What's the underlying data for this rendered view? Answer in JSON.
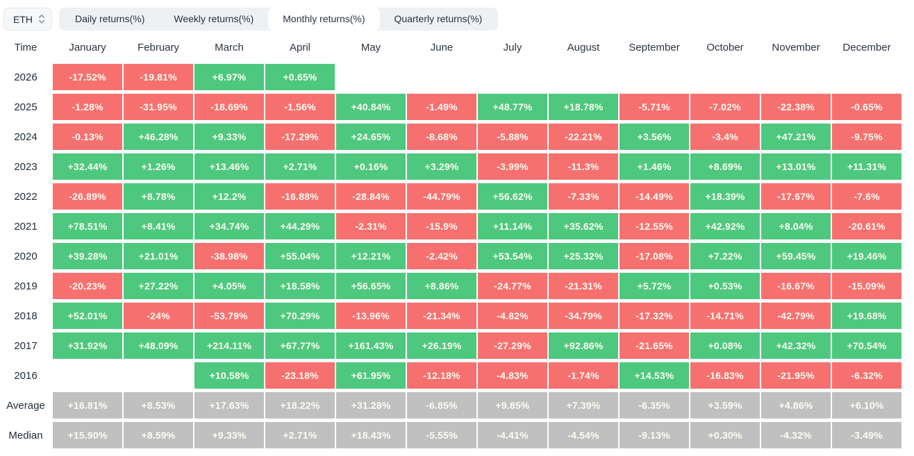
{
  "asset_selector": {
    "value": "ETH"
  },
  "tabs": [
    {
      "label": "Daily returns(%)",
      "active": false
    },
    {
      "label": "Weekly returns(%)",
      "active": false
    },
    {
      "label": "Monthly returns(%)",
      "active": true
    },
    {
      "label": "Quarterly returns(%)",
      "active": false
    }
  ],
  "chart_data": {
    "type": "heatmap",
    "unit": "percent",
    "row_header": "Time",
    "columns": [
      "January",
      "February",
      "March",
      "April",
      "May",
      "June",
      "July",
      "August",
      "September",
      "October",
      "November",
      "December"
    ],
    "rows": [
      {
        "label": "2026",
        "summary": false,
        "values": [
          "-17.52%",
          "-19.81%",
          "+6.97%",
          "+0.65%",
          "",
          "",
          "",
          "",
          "",
          "",
          "",
          ""
        ]
      },
      {
        "label": "2025",
        "summary": false,
        "values": [
          "-1.28%",
          "-31.95%",
          "-18.69%",
          "-1.56%",
          "+40.84%",
          "-1.49%",
          "+48.77%",
          "+18.78%",
          "-5.71%",
          "-7.02%",
          "-22.38%",
          "-0.65%"
        ]
      },
      {
        "label": "2024",
        "summary": false,
        "values": [
          "-0.13%",
          "+46.28%",
          "+9.33%",
          "-17.29%",
          "+24.65%",
          "-8.68%",
          "-5.88%",
          "-22.21%",
          "+3.56%",
          "-3.4%",
          "+47.21%",
          "-9.75%"
        ]
      },
      {
        "label": "2023",
        "summary": false,
        "values": [
          "+32.44%",
          "+1.26%",
          "+13.46%",
          "+2.71%",
          "+0.16%",
          "+3.29%",
          "-3.99%",
          "-11.3%",
          "+1.46%",
          "+8.69%",
          "+13.01%",
          "+11.31%"
        ]
      },
      {
        "label": "2022",
        "summary": false,
        "values": [
          "-26.89%",
          "+8.78%",
          "+12.2%",
          "-16.88%",
          "-28.84%",
          "-44.79%",
          "+56.62%",
          "-7.33%",
          "-14.49%",
          "+18.39%",
          "-17.67%",
          "-7.6%"
        ]
      },
      {
        "label": "2021",
        "summary": false,
        "values": [
          "+78.51%",
          "+8.41%",
          "+34.74%",
          "+44.29%",
          "-2.31%",
          "-15.9%",
          "+11.14%",
          "+35.62%",
          "-12.55%",
          "+42.92%",
          "+8.04%",
          "-20.61%"
        ]
      },
      {
        "label": "2020",
        "summary": false,
        "values": [
          "+39.28%",
          "+21.01%",
          "-38.98%",
          "+55.04%",
          "+12.21%",
          "-2.42%",
          "+53.54%",
          "+25.32%",
          "-17.08%",
          "+7.22%",
          "+59.45%",
          "+19.46%"
        ]
      },
      {
        "label": "2019",
        "summary": false,
        "values": [
          "-20.23%",
          "+27.22%",
          "+4.05%",
          "+18.58%",
          "+56.65%",
          "+8.86%",
          "-24.77%",
          "-21.31%",
          "+5.72%",
          "+0.53%",
          "-16.67%",
          "-15.09%"
        ]
      },
      {
        "label": "2018",
        "summary": false,
        "values": [
          "+52.01%",
          "-24%",
          "-53.79%",
          "+70.29%",
          "-13.96%",
          "-21.34%",
          "-4.82%",
          "-34.79%",
          "-17.32%",
          "-14.71%",
          "-42.79%",
          "+19.68%"
        ]
      },
      {
        "label": "2017",
        "summary": false,
        "values": [
          "+31.92%",
          "+48.09%",
          "+214.11%",
          "+67.77%",
          "+161.43%",
          "+26.19%",
          "-27.29%",
          "+92.86%",
          "-21.65%",
          "+0.08%",
          "+42.32%",
          "+70.54%"
        ]
      },
      {
        "label": "2016",
        "summary": false,
        "values": [
          "",
          "",
          "+10.58%",
          "-23.18%",
          "+61.95%",
          "-12.18%",
          "-4.83%",
          "-1.74%",
          "+14.53%",
          "-16.83%",
          "-21.95%",
          "-6.32%"
        ]
      },
      {
        "label": "Average",
        "summary": true,
        "values": [
          "+16.81%",
          "+8.53%",
          "+17.63%",
          "+18.22%",
          "+31.28%",
          "-6.85%",
          "+9.85%",
          "+7.39%",
          "-6.35%",
          "+3.59%",
          "+4.86%",
          "+6.10%"
        ]
      },
      {
        "label": "Median",
        "summary": true,
        "values": [
          "+15.90%",
          "+8.59%",
          "+9.33%",
          "+2.71%",
          "+18.43%",
          "-5.55%",
          "-4.41%",
          "-4.54%",
          "-9.13%",
          "+0.30%",
          "-4.32%",
          "-3.49%"
        ]
      }
    ],
    "colors": {
      "positive": "#4ec87f",
      "negative": "#f77070",
      "summary": "#c0c0c0",
      "cell_text": "#fdfcf2",
      "label_text": "#212d3b"
    }
  }
}
